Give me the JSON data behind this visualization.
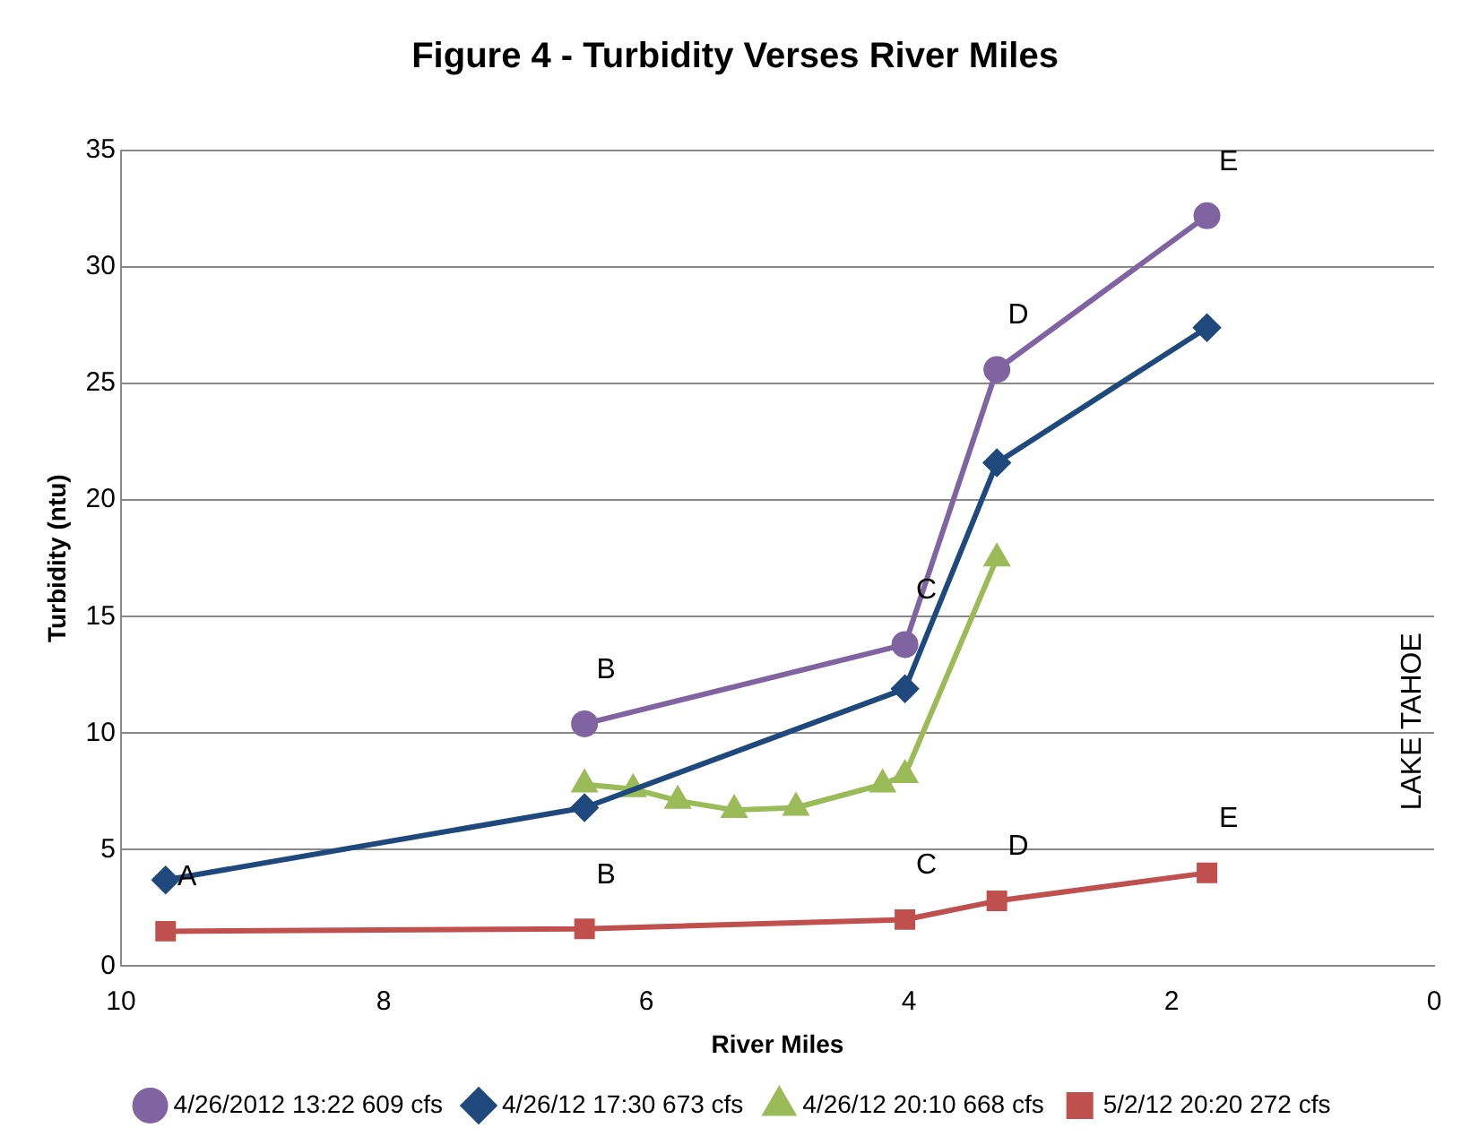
{
  "chart_data": {
    "type": "line",
    "title": "Figure 4 - Turbidity Verses River Miles",
    "xlabel": "River Miles",
    "ylabel": "Turbidity (ntu)",
    "xlim": [
      10,
      0
    ],
    "xticks": [
      10,
      8,
      6,
      4,
      2,
      0
    ],
    "ylim": [
      0,
      35
    ],
    "yticks": [
      0,
      5,
      10,
      15,
      20,
      25,
      30,
      35
    ],
    "grid": "y",
    "legend": "bottom",
    "line_style": "solid",
    "series": [
      {
        "name": "4/26/2012 13:22 609 cfs",
        "color": "#8064a2",
        "marker": "circle",
        "x": [
          6.47,
          4.03,
          3.33,
          1.73
        ],
        "values": [
          10.4,
          13.8,
          25.6,
          32.2
        ]
      },
      {
        "name": "4/26/12 17:30 673 cfs",
        "color": "#1f497d",
        "marker": "diamond",
        "x": [
          9.66,
          6.47,
          4.03,
          3.33,
          1.73
        ],
        "values": [
          3.7,
          6.8,
          11.9,
          21.6,
          27.4
        ]
      },
      {
        "name": "4/26/12 20:10 668 cfs",
        "color": "#9bbb59",
        "marker": "triangle",
        "x": [
          6.47,
          6.1,
          5.76,
          5.33,
          4.86,
          4.2,
          4.03,
          3.33
        ],
        "values": [
          7.8,
          7.6,
          7.1,
          6.7,
          6.8,
          7.8,
          8.2,
          17.5
        ]
      },
      {
        "name": "5/2/12 20:20 272 cfs",
        "color": "#c0504d",
        "marker": "square",
        "x": [
          9.66,
          6.47,
          4.03,
          3.33,
          1.73
        ],
        "values": [
          1.5,
          1.6,
          2.0,
          2.8,
          4.0
        ]
      }
    ],
    "annotations": [
      {
        "text": "B",
        "x": 6.47,
        "y": 10.4
      },
      {
        "text": "C",
        "x": 4.03,
        "y": 13.8
      },
      {
        "text": "D",
        "x": 3.33,
        "y": 25.6
      },
      {
        "text": "E",
        "x": 1.73,
        "y": 32.2
      },
      {
        "text": "A",
        "x": 9.66,
        "y": 1.5
      },
      {
        "text": "B",
        "x": 6.47,
        "y": 1.6
      },
      {
        "text": "C",
        "x": 4.03,
        "y": 2.0
      },
      {
        "text": "D",
        "x": 3.33,
        "y": 2.8
      },
      {
        "text": "E",
        "x": 1.73,
        "y": 4.0
      },
      "LAKE TAHOE"
    ]
  }
}
